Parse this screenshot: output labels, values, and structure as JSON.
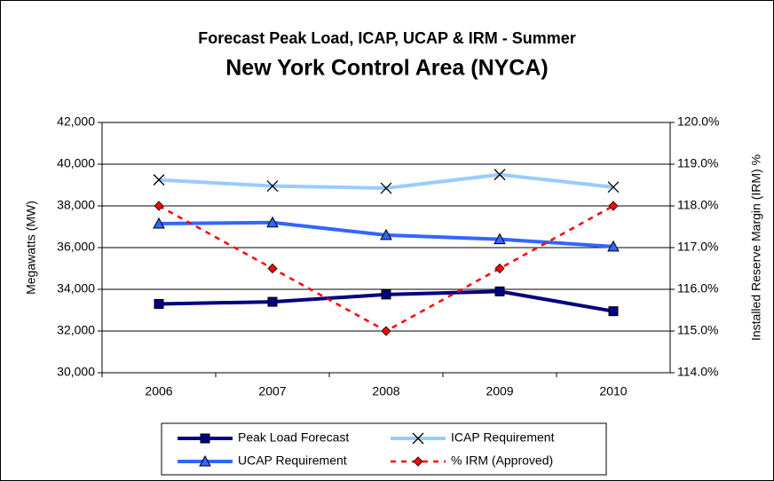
{
  "chart_data": {
    "type": "line",
    "title": "Forecast Peak Load, ICAP, UCAP & IRM - Summer",
    "subtitle": "New York Control Area (NYCA)",
    "ylabel": "Megawatts (MW)",
    "y2label": "Installed Reserve Margin (IRM) %",
    "categories": [
      "2006",
      "2007",
      "2008",
      "2009",
      "2010"
    ],
    "ylim": [
      30000,
      42000
    ],
    "yticks": [
      {
        "value": 30000,
        "label": "30,000"
      },
      {
        "value": 32000,
        "label": "32,000"
      },
      {
        "value": 34000,
        "label": "34,000"
      },
      {
        "value": 36000,
        "label": "36,000"
      },
      {
        "value": 38000,
        "label": "38,000"
      },
      {
        "value": 40000,
        "label": "40,000"
      },
      {
        "value": 42000,
        "label": "42,000"
      }
    ],
    "y2lim": [
      114,
      120
    ],
    "y2ticks": [
      {
        "value": 114,
        "label": "114.0%"
      },
      {
        "value": 115,
        "label": "115.0%"
      },
      {
        "value": 116,
        "label": "116.0%"
      },
      {
        "value": 117,
        "label": "117.0%"
      },
      {
        "value": 118,
        "label": "118.0%"
      },
      {
        "value": 119,
        "label": "119.0%"
      },
      {
        "value": 120,
        "label": "120.0%"
      }
    ],
    "grid": true,
    "legend": "bottom",
    "series": [
      {
        "name": "Peak Load Forecast",
        "color": "#000080",
        "marker": "square",
        "values": [
          33300,
          33400,
          33750,
          33900,
          32950
        ]
      },
      {
        "name": "ICAP Requirement",
        "color": "#99ccff",
        "marker": "x",
        "values": [
          39250,
          38950,
          38850,
          39500,
          38900
        ]
      },
      {
        "name": "UCAP Requirement",
        "color": "#3366ff",
        "marker": "triangle",
        "values": [
          37150,
          37200,
          36600,
          36400,
          36050
        ]
      },
      {
        "name": "% IRM (Approved)",
        "color": "#ff0000",
        "marker": "diamond",
        "dashed": true,
        "axis": "y2",
        "values": [
          118.0,
          116.5,
          115.0,
          116.5,
          118.0
        ]
      }
    ]
  }
}
